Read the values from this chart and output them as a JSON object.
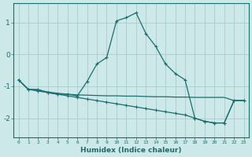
{
  "xlabel": "Humidex (Indice chaleur)",
  "background_color": "#cce8e8",
  "grid_color": "#aacccc",
  "line_color": "#1a6e6e",
  "xlim": [
    -0.5,
    23.5
  ],
  "ylim": [
    -2.6,
    1.6
  ],
  "yticks": [
    -2,
    -1,
    0,
    1
  ],
  "xticks": [
    0,
    1,
    2,
    3,
    4,
    5,
    6,
    7,
    8,
    9,
    10,
    11,
    12,
    13,
    14,
    15,
    16,
    17,
    18,
    19,
    20,
    21,
    22,
    23
  ],
  "series1": [
    [
      0,
      -0.8
    ],
    [
      1,
      -1.1
    ],
    [
      2,
      -1.1
    ],
    [
      3,
      -1.2
    ],
    [
      4,
      -1.25
    ],
    [
      5,
      -1.25
    ],
    [
      6,
      -1.3
    ],
    [
      7,
      -0.85
    ],
    [
      8,
      -0.3
    ],
    [
      9,
      -0.1
    ],
    [
      10,
      1.05
    ],
    [
      11,
      1.15
    ],
    [
      12,
      1.3
    ],
    [
      13,
      0.65
    ],
    [
      14,
      0.25
    ],
    [
      15,
      -0.3
    ],
    [
      16,
      -0.6
    ],
    [
      17,
      -0.8
    ],
    [
      18,
      -2.0
    ],
    [
      19,
      -2.1
    ],
    [
      20,
      -2.15
    ],
    [
      21,
      -2.15
    ],
    [
      22,
      -1.45
    ],
    [
      23,
      -1.45
    ]
  ],
  "series2": [
    [
      0,
      -0.8
    ],
    [
      1,
      -1.1
    ],
    [
      2,
      -1.15
    ],
    [
      3,
      -1.2
    ],
    [
      4,
      -1.25
    ],
    [
      5,
      -1.3
    ],
    [
      6,
      -1.35
    ],
    [
      7,
      -1.4
    ],
    [
      8,
      -1.45
    ],
    [
      9,
      -1.5
    ],
    [
      10,
      -1.55
    ],
    [
      11,
      -1.6
    ],
    [
      12,
      -1.65
    ],
    [
      13,
      -1.7
    ],
    [
      14,
      -1.75
    ],
    [
      15,
      -1.8
    ],
    [
      16,
      -1.85
    ],
    [
      17,
      -1.9
    ],
    [
      18,
      -2.0
    ],
    [
      19,
      -2.1
    ],
    [
      20,
      -2.15
    ],
    [
      21,
      -2.15
    ],
    [
      22,
      -1.45
    ],
    [
      23,
      -1.45
    ]
  ],
  "series3": [
    [
      0,
      -0.8
    ],
    [
      1,
      -1.1
    ],
    [
      2,
      -1.12
    ],
    [
      3,
      -1.18
    ],
    [
      4,
      -1.22
    ],
    [
      5,
      -1.25
    ],
    [
      6,
      -1.27
    ],
    [
      7,
      -1.28
    ],
    [
      8,
      -1.29
    ],
    [
      9,
      -1.3
    ],
    [
      10,
      -1.3
    ],
    [
      11,
      -1.31
    ],
    [
      12,
      -1.31
    ],
    [
      13,
      -1.32
    ],
    [
      14,
      -1.33
    ],
    [
      15,
      -1.33
    ],
    [
      16,
      -1.34
    ],
    [
      17,
      -1.34
    ],
    [
      18,
      -1.35
    ],
    [
      19,
      -1.35
    ],
    [
      20,
      -1.35
    ],
    [
      21,
      -1.35
    ],
    [
      22,
      -1.45
    ],
    [
      23,
      -1.45
    ]
  ]
}
